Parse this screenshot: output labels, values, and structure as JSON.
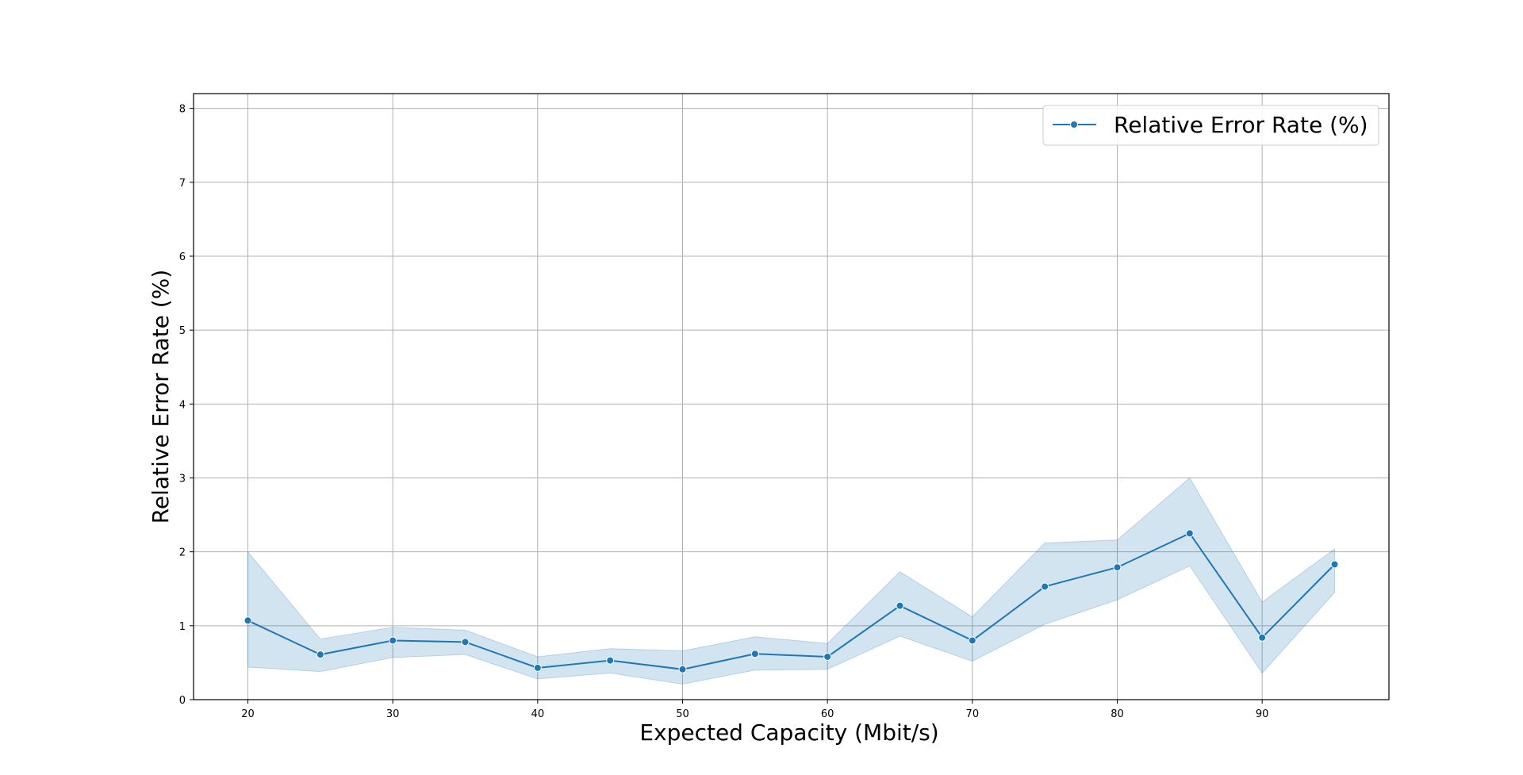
{
  "chart_data": {
    "type": "line",
    "title": "",
    "xlabel": "Expected Capacity (Mbit/s)",
    "ylabel": "Relative Error Rate (%)",
    "xlim": [
      16.25,
      98.75
    ],
    "ylim": [
      0,
      8.2
    ],
    "xticks": [
      20,
      30,
      40,
      50,
      60,
      70,
      80,
      90
    ],
    "yticks": [
      0,
      1,
      2,
      3,
      4,
      5,
      6,
      7,
      8
    ],
    "grid": true,
    "legend_position": "top-right",
    "colors": {
      "line": "#1f77b4",
      "band": "#1f77b4"
    },
    "series": [
      {
        "name": "Relative Error Rate (%)",
        "x": [
          20,
          25,
          30,
          35,
          40,
          45,
          50,
          55,
          60,
          65,
          70,
          75,
          80,
          85,
          90,
          95
        ],
        "y": [
          1.07,
          0.61,
          0.8,
          0.78,
          0.43,
          0.53,
          0.41,
          0.62,
          0.58,
          1.27,
          0.8,
          1.53,
          1.79,
          2.25,
          0.84,
          1.83
        ],
        "lower": [
          0.44,
          0.38,
          0.57,
          0.61,
          0.28,
          0.36,
          0.21,
          0.4,
          0.41,
          0.86,
          0.52,
          1.02,
          1.35,
          1.81,
          0.36,
          1.45
        ],
        "upper": [
          2.0,
          0.82,
          0.98,
          0.94,
          0.58,
          0.69,
          0.66,
          0.85,
          0.76,
          1.73,
          1.12,
          2.12,
          2.16,
          3.0,
          1.32,
          2.04
        ]
      }
    ]
  }
}
